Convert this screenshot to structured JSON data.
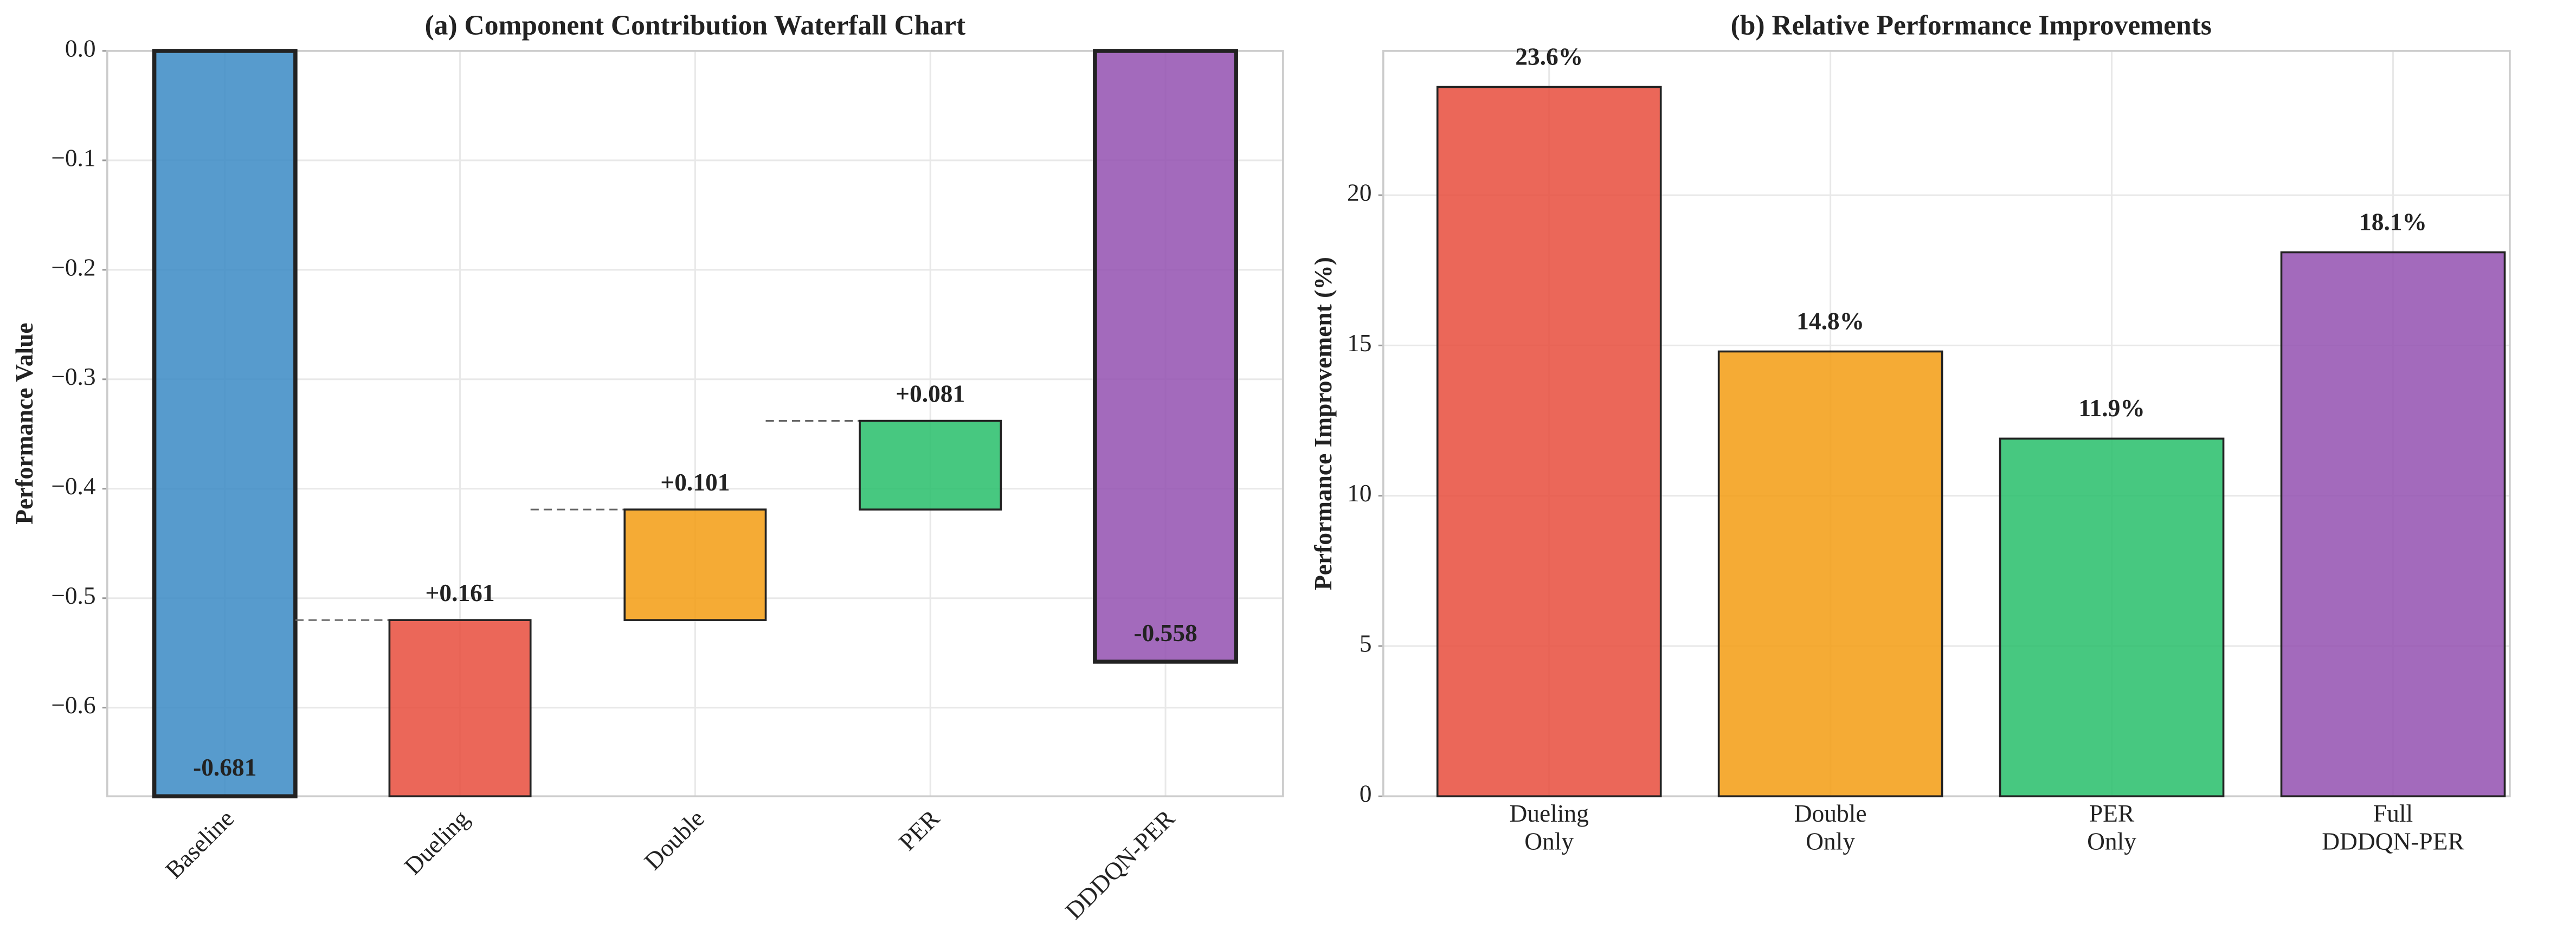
{
  "chart_data": [
    {
      "type": "waterfall",
      "title": "(a) Component Contribution Waterfall Chart",
      "ylabel": "Performance Value",
      "categories": [
        "Baseline",
        "Dueling",
        "Double",
        "PER",
        "DDDQN-PER"
      ],
      "values": [
        -0.681,
        0.161,
        0.101,
        0.081,
        -0.558
      ],
      "value_labels": [
        "-0.681",
        "+0.161",
        "+0.101",
        "+0.081",
        "-0.558"
      ],
      "measures": [
        "absolute",
        "relative",
        "relative",
        "relative",
        "absolute"
      ],
      "colors": [
        "#3a89c4",
        "#e74c3c",
        "#f39c12",
        "#27be6a",
        "#9350b0"
      ],
      "ylim": [
        -0.681,
        0
      ],
      "yticks": [
        {
          "value": 0,
          "label": "0.0"
        },
        {
          "value": -0.1,
          "label": "−0.1"
        },
        {
          "value": -0.2,
          "label": "−0.2"
        },
        {
          "value": -0.3,
          "label": "−0.3"
        },
        {
          "value": -0.4,
          "label": "−0.4"
        },
        {
          "value": -0.5,
          "label": "−0.5"
        },
        {
          "value": -0.6,
          "label": "−0.6"
        }
      ],
      "grid": true
    },
    {
      "type": "bar",
      "title": "(b) Relative Performance Improvements",
      "ylabel": "Performance Improvement (%)",
      "categories": [
        [
          "Dueling",
          "Only"
        ],
        [
          "Double",
          "Only"
        ],
        [
          "PER",
          "Only"
        ],
        [
          "Full",
          "DDDQN-PER"
        ]
      ],
      "values": [
        23.6,
        14.8,
        11.9,
        18.1
      ],
      "value_labels": [
        "23.6%",
        "14.8%",
        "11.9%",
        "18.1%"
      ],
      "colors": [
        "#e74c3c",
        "#f39c12",
        "#27be6a",
        "#9350b0"
      ],
      "ylim": [
        0,
        24.8
      ],
      "yticks": [
        0,
        5,
        10,
        15,
        20
      ],
      "grid": true
    }
  ]
}
